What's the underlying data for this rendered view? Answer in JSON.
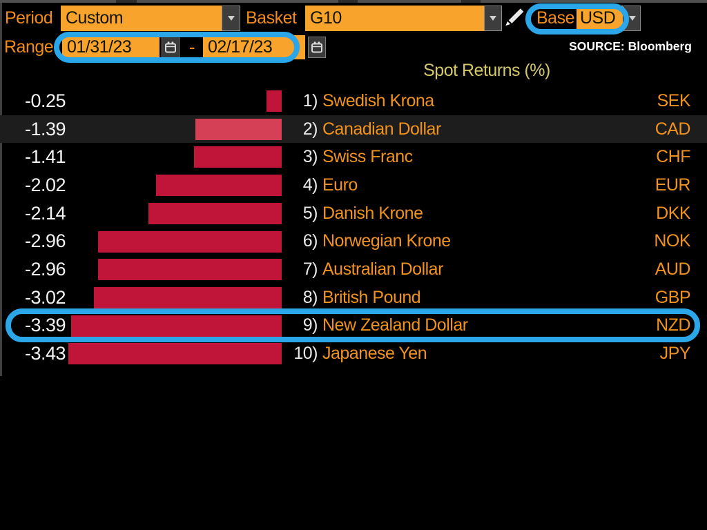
{
  "toolbar": {
    "period_label": "Period",
    "period_value": "Custom",
    "basket_label": "Basket",
    "basket_value": "G10",
    "base_label": "Base",
    "base_value": "USD",
    "range_label": "Range",
    "range_start": "01/31/23",
    "range_separator": "-",
    "range_end": "02/17/23"
  },
  "source_text": "SOURCE: Bloomberg",
  "chart_data": {
    "type": "bar",
    "orientation": "horizontal",
    "title": "Spot Returns (%)",
    "categories": [
      "Swedish Krona",
      "Canadian Dollar",
      "Swiss Franc",
      "Euro",
      "Danish Krone",
      "Norwegian Krone",
      "Australian Dollar",
      "British Pound",
      "New Zealand Dollar",
      "Japanese Yen"
    ],
    "rank_labels": [
      "1)",
      "2)",
      "3)",
      "4)",
      "5)",
      "6)",
      "7)",
      "8)",
      "9)",
      "10)"
    ],
    "codes": [
      "SEK",
      "CAD",
      "CHF",
      "EUR",
      "DKK",
      "NOK",
      "AUD",
      "GBP",
      "NZD",
      "JPY"
    ],
    "values": [
      -0.25,
      -1.39,
      -1.41,
      -2.02,
      -2.14,
      -2.96,
      -2.96,
      -3.02,
      -3.39,
      -3.43
    ],
    "value_labels": [
      "-0.25",
      "-1.39",
      "-1.41",
      "-2.02",
      "-2.14",
      "-2.96",
      "-2.96",
      "-3.02",
      "-3.39",
      "-3.43"
    ],
    "xlim": [
      -3.43,
      0
    ],
    "legend": "none",
    "grid": "off",
    "highlighted_row_index": 1,
    "circled_row_index": 8,
    "bar_color": "#C01538",
    "highlighted_bar_color": "#D64057"
  },
  "colors": {
    "field_orange": "#F8A42C",
    "label_orange": "#F28C1A",
    "amber_text": "#F0921E",
    "annotation_blue": "#2BA6E9",
    "title_yellow": "#D5C967",
    "bar_red": "#C01538"
  },
  "icons": {
    "dropdown": "chevron-down triangle",
    "calendar": "calendar glyph",
    "pencil": "pencil glyph"
  }
}
